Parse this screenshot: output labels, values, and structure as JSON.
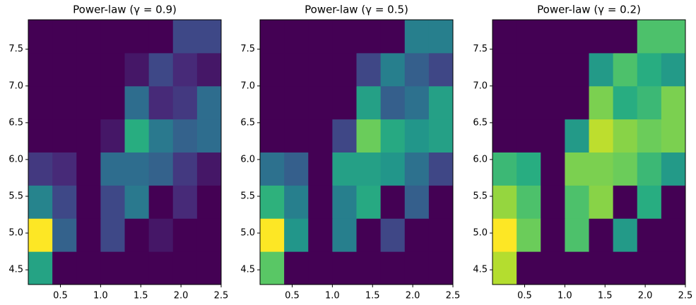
{
  "chart_data": [
    {
      "type": "hist2d",
      "title": "Power-law (γ = 0.9)",
      "gamma": 0.9,
      "colormap": "viridis",
      "xbins": [
        0.1,
        0.4,
        0.7,
        1.0,
        1.3,
        1.6,
        1.9,
        2.2,
        2.5
      ],
      "ybins": [
        4.3,
        4.75,
        5.2,
        5.65,
        6.1,
        6.55,
        7.0,
        7.45,
        7.9
      ],
      "counts": [
        [
          12,
          0,
          0,
          0,
          0,
          0,
          0,
          0
        ],
        [
          22,
          6,
          0,
          4,
          0,
          1,
          0,
          0
        ],
        [
          9,
          4,
          0,
          4,
          8,
          0,
          2,
          0
        ],
        [
          3,
          2,
          0,
          7,
          7,
          6,
          3,
          1
        ],
        [
          0,
          0,
          0,
          1,
          13,
          8,
          6,
          7
        ],
        [
          0,
          0,
          0,
          0,
          7,
          2,
          3,
          7
        ],
        [
          0,
          0,
          0,
          0,
          1,
          4,
          2,
          1
        ],
        [
          0,
          0,
          0,
          0,
          0,
          0,
          4,
          4
        ]
      ],
      "xlim": [
        0.1,
        2.5
      ],
      "ylim": [
        4.3,
        7.9
      ],
      "xticks": [
        0.5,
        {
          "value": 1,
          "label": "1.0"
        },
        1.5,
        {
          "value": 2,
          "label": "2.0"
        },
        2.5
      ],
      "yticks": [
        4.5,
        {
          "value": 5,
          "label": "5.0"
        },
        5.5,
        {
          "value": 6,
          "label": "6.0"
        },
        6.5,
        {
          "value": 7,
          "label": "7.0"
        },
        7.5
      ]
    },
    {
      "type": "hist2d",
      "title": "Power-law (γ = 0.5)",
      "gamma": 0.5,
      "colormap": "viridis",
      "xbins": [
        0.1,
        0.4,
        0.7,
        1.0,
        1.3,
        1.6,
        1.9,
        2.2,
        2.5
      ],
      "ybins": [
        4.3,
        4.75,
        5.2,
        5.65,
        6.1,
        6.55,
        7.0,
        7.45,
        7.9
      ],
      "counts": [
        [
          12,
          0,
          0,
          0,
          0,
          0,
          0,
          0
        ],
        [
          22,
          6,
          0,
          4,
          0,
          1,
          0,
          0
        ],
        [
          9,
          4,
          0,
          4,
          8,
          0,
          2,
          0
        ],
        [
          3,
          2,
          0,
          7,
          7,
          6,
          3,
          1
        ],
        [
          0,
          0,
          0,
          1,
          13,
          8,
          6,
          7
        ],
        [
          0,
          0,
          0,
          0,
          7,
          2,
          3,
          7
        ],
        [
          0,
          0,
          0,
          0,
          1,
          4,
          2,
          1
        ],
        [
          0,
          0,
          0,
          0,
          0,
          0,
          4,
          4
        ]
      ],
      "xlim": [
        0.1,
        2.5
      ],
      "ylim": [
        4.3,
        7.9
      ],
      "xticks": [
        0.5,
        {
          "value": 1,
          "label": "1.0"
        },
        1.5,
        {
          "value": 2,
          "label": "2.0"
        },
        2.5
      ],
      "yticks": [
        4.5,
        {
          "value": 5,
          "label": "5.0"
        },
        5.5,
        {
          "value": 6,
          "label": "6.0"
        },
        6.5,
        {
          "value": 7,
          "label": "7.0"
        },
        7.5
      ]
    },
    {
      "type": "hist2d",
      "title": "Power-law (γ = 0.2)",
      "gamma": 0.2,
      "colormap": "viridis",
      "xbins": [
        0.1,
        0.4,
        0.7,
        1.0,
        1.3,
        1.6,
        1.9,
        2.2,
        2.5
      ],
      "ybins": [
        4.3,
        4.75,
        5.2,
        5.65,
        6.1,
        6.55,
        7.0,
        7.45,
        7.9
      ],
      "counts": [
        [
          12,
          0,
          0,
          0,
          0,
          0,
          0,
          0
        ],
        [
          22,
          6,
          0,
          4,
          0,
          1,
          0,
          0
        ],
        [
          9,
          4,
          0,
          4,
          8,
          0,
          2,
          0
        ],
        [
          3,
          2,
          0,
          7,
          7,
          6,
          3,
          1
        ],
        [
          0,
          0,
          0,
          1,
          13,
          8,
          6,
          7
        ],
        [
          0,
          0,
          0,
          0,
          7,
          2,
          3,
          7
        ],
        [
          0,
          0,
          0,
          0,
          1,
          4,
          2,
          1
        ],
        [
          0,
          0,
          0,
          0,
          0,
          0,
          4,
          4
        ]
      ],
      "xlim": [
        0.1,
        2.5
      ],
      "ylim": [
        4.3,
        7.9
      ],
      "xticks": [
        0.5,
        {
          "value": 1,
          "label": "1.0"
        },
        1.5,
        {
          "value": 2,
          "label": "2.0"
        },
        2.5
      ],
      "yticks": [
        4.5,
        {
          "value": 5,
          "label": "5.0"
        },
        5.5,
        {
          "value": 6,
          "label": "6.0"
        },
        6.5,
        {
          "value": 7,
          "label": "7.0"
        },
        7.5
      ]
    }
  ]
}
